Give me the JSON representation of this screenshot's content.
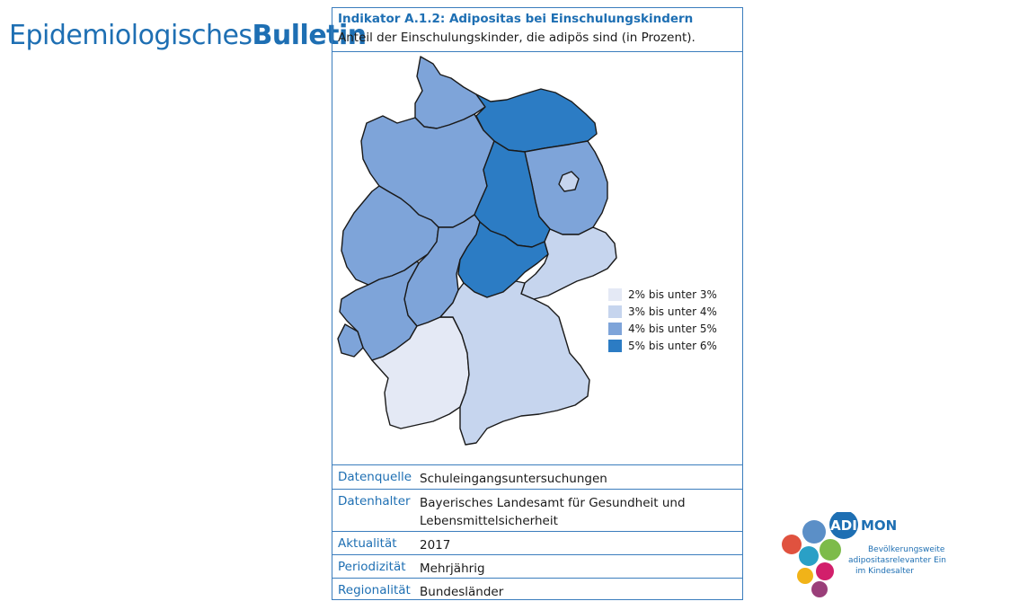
{
  "brand": {
    "light": "Epidemiologisches",
    "bold": "Bulletin"
  },
  "indicator": {
    "title": "Indikator A.1.2: Adipositas bei Einschulungskindern",
    "subtitle": "Anteil der Einschulungskinder, die adipös sind (in Prozent)."
  },
  "legend": [
    {
      "label": "2% bis unter 3%",
      "color": "#e4e9f5"
    },
    {
      "label": "3% bis unter 4%",
      "color": "#c6d5ee"
    },
    {
      "label": "4% bis unter 5%",
      "color": "#7ea4d9"
    },
    {
      "label": "5% bis unter 6%",
      "color": "#2c7cc4"
    }
  ],
  "regions": [
    {
      "name": "Schleswig-Holstein",
      "class": 2
    },
    {
      "name": "Mecklenburg-Vorpommern",
      "class": 3
    },
    {
      "name": "Hamburg",
      "class": 3
    },
    {
      "name": "Bremen",
      "class": 2
    },
    {
      "name": "Niedersachsen",
      "class": 2
    },
    {
      "name": "Brandenburg",
      "class": 2
    },
    {
      "name": "Berlin",
      "class": 1
    },
    {
      "name": "Sachsen-Anhalt",
      "class": 3
    },
    {
      "name": "Nordrhein-Westfalen",
      "class": 2
    },
    {
      "name": "Hessen",
      "class": 2
    },
    {
      "name": "Thüringen",
      "class": 3
    },
    {
      "name": "Sachsen",
      "class": 1
    },
    {
      "name": "Rheinland-Pfalz",
      "class": 2
    },
    {
      "name": "Saarland",
      "class": 2
    },
    {
      "name": "Baden-Württemberg",
      "class": 0
    },
    {
      "name": "Bayern",
      "class": 1
    }
  ],
  "meta": [
    {
      "key": "Datenquelle",
      "value": "Schuleingangsuntersuchungen"
    },
    {
      "key": "Datenhalter",
      "value": "Bayerisches Landesamt für Gesundheit und Lebensmittelsicherheit"
    },
    {
      "key": "Aktualität",
      "value": "2017"
    },
    {
      "key": "Periodizität",
      "value": "Mehrjährig"
    },
    {
      "key": "Regionalität",
      "value": "Bundesländer"
    }
  ],
  "logo": {
    "adi": "ADI",
    "mon": "MON",
    "tagline1": "Bevölkerungsweite",
    "tagline2": "adipositasrelevanter Ein",
    "tagline3": "im Kindesalter"
  }
}
